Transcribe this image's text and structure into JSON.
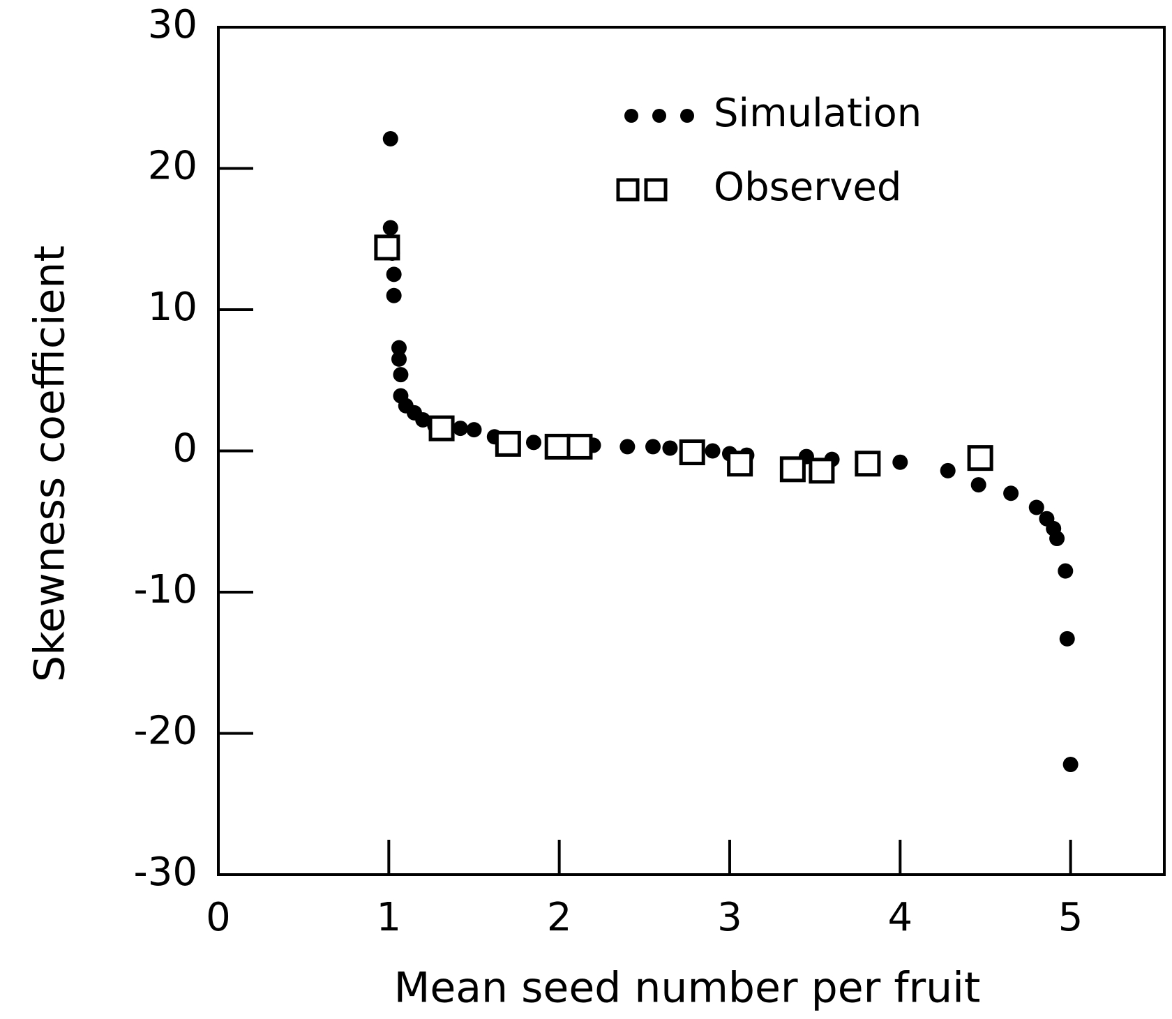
{
  "chart_data": {
    "type": "scatter",
    "x_label": "Mean seed number per fruit",
    "y_label": "Skewness coefficient",
    "xlim": [
      0,
      5.55
    ],
    "ylim": [
      -30,
      30
    ],
    "xticks": [
      0,
      1,
      2,
      3,
      4,
      5
    ],
    "yticks": [
      -30,
      -20,
      -10,
      0,
      10,
      20,
      30
    ],
    "legend": "upper right",
    "series": [
      {
        "name": "Simulation",
        "marker": "circle",
        "color": "#000000",
        "x": [
          1.01,
          1.01,
          1.02,
          1.03,
          1.03,
          1.06,
          1.06,
          1.07,
          1.07,
          1.1,
          1.15,
          1.2,
          1.27,
          1.33,
          1.42,
          1.5,
          1.62,
          1.85,
          2.2,
          2.4,
          2.55,
          2.65,
          2.75,
          2.9,
          3.0,
          3.1,
          3.45,
          3.6,
          3.8,
          4.0,
          4.28,
          4.46,
          4.65,
          4.8,
          4.86,
          4.9,
          4.92,
          4.97,
          4.98,
          5.0
        ],
        "values": [
          22.1,
          15.8,
          14.0,
          12.5,
          11.0,
          7.3,
          6.5,
          5.4,
          3.9,
          3.2,
          2.7,
          2.2,
          1.8,
          1.3,
          1.6,
          1.5,
          1.0,
          0.6,
          0.4,
          0.3,
          0.3,
          0.2,
          0.1,
          0.0,
          -0.2,
          -0.3,
          -0.4,
          -0.6,
          -0.6,
          -0.8,
          -1.4,
          -2.4,
          -3.0,
          -4.0,
          -4.8,
          -5.5,
          -6.2,
          -8.5,
          -13.3,
          -22.2
        ]
      },
      {
        "name": "Observed",
        "marker": "square",
        "color": "#000000",
        "x": [
          0.99,
          1.31,
          1.7,
          1.99,
          2.12,
          2.78,
          3.06,
          3.37,
          3.54,
          3.81,
          4.47
        ],
        "values": [
          14.4,
          1.6,
          0.5,
          0.3,
          0.3,
          -0.1,
          -0.9,
          -1.3,
          -1.4,
          -0.9,
          -0.5
        ]
      }
    ]
  }
}
